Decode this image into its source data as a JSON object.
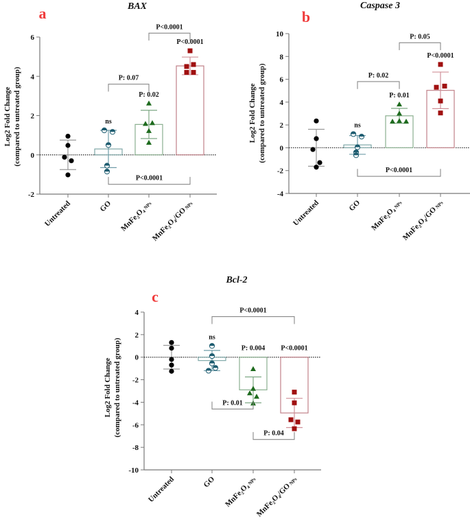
{
  "chart_data": [
    {
      "type": "bar",
      "panel": "a",
      "title": "BAX",
      "ylabel": "Log2 Fold Change",
      "ylabel2": "(compared to untreated group)",
      "ylim": [
        -2,
        6
      ],
      "yticks": [
        -2,
        0,
        2,
        4,
        6
      ],
      "categories": [
        {
          "main": "Untreated",
          "sub": ""
        },
        {
          "main": "GO",
          "sub": ""
        },
        {
          "main": "MnFe₂O₄",
          "sub": "NPs"
        },
        {
          "main": "MnFe₂O₄/GO",
          "sub": "NPs"
        }
      ],
      "means": [
        0.0,
        0.3,
        1.55,
        4.53
      ],
      "sd": [
        0.75,
        0.95,
        0.72,
        0.45
      ],
      "points": [
        [
          0.95,
          0.48,
          -0.12,
          -0.3,
          -1.02
        ],
        [
          1.25,
          1.17,
          0.5,
          -0.55,
          -0.85
        ],
        [
          2.62,
          1.58,
          1.62,
          1.22,
          0.62
        ],
        [
          5.3,
          4.5,
          4.6,
          4.2,
          4.2
        ]
      ],
      "group_annotations": [
        "",
        "ns",
        "P: 0.02",
        "P<0.0001"
      ],
      "brackets": [
        {
          "from": 1,
          "to": 2,
          "label": "P: 0.07",
          "y": 3.6,
          "dir": "up"
        },
        {
          "from": 2,
          "to": 3,
          "label": "P<0.0001",
          "y": 6.2,
          "dir": "up"
        },
        {
          "from": 1,
          "to": 3,
          "label": "P<0.0001",
          "y": -1.5,
          "dir": "down"
        }
      ]
    },
    {
      "type": "bar",
      "panel": "b",
      "title": "Caspase 3",
      "ylabel": "Log2 Fold Change",
      "ylabel2": "(compared to untreated group)",
      "ylim": [
        -4,
        10
      ],
      "yticks": [
        -4,
        -2,
        0,
        2,
        4,
        6,
        8,
        10
      ],
      "categories": [
        {
          "main": "Untreated",
          "sub": ""
        },
        {
          "main": "GO",
          "sub": ""
        },
        {
          "main": "MnFe₂O₄",
          "sub": "NPs"
        },
        {
          "main": "MnFe₂O₄/GO",
          "sub": "NPs"
        }
      ],
      "means": [
        0.0,
        0.25,
        2.8,
        5.03
      ],
      "sd": [
        1.62,
        0.82,
        0.65,
        1.6
      ],
      "points": [
        [
          2.35,
          0.8,
          -0.15,
          -1.3,
          -1.7
        ],
        [
          1.2,
          0.98,
          0.05,
          -0.4,
          -0.65
        ],
        [
          3.8,
          3.0,
          2.3,
          2.35,
          2.3
        ],
        [
          7.3,
          5.3,
          5.4,
          4.1,
          3.05
        ]
      ],
      "group_annotations": [
        "",
        "ns",
        "P: 0.01",
        "P<0.0001"
      ],
      "brackets": [
        {
          "from": 1,
          "to": 2,
          "label": "P: 0.02",
          "y": 5.8,
          "dir": "up"
        },
        {
          "from": 2,
          "to": 3,
          "label": "P: 0.05",
          "y": 9.2,
          "dir": "up"
        },
        {
          "from": 1,
          "to": 3,
          "label": "P<0.0001",
          "y": -2.5,
          "dir": "down"
        }
      ]
    },
    {
      "type": "bar",
      "panel": "c",
      "title": "Bcl-2",
      "ylabel": "Log2 Fold Change",
      "ylabel2": "(compared to untreated group)",
      "ylim": [
        -10,
        4
      ],
      "yticks": [
        -10,
        -8,
        -6,
        -4,
        -2,
        0,
        2,
        4
      ],
      "categories": [
        {
          "main": "Untreated",
          "sub": ""
        },
        {
          "main": "GO",
          "sub": ""
        },
        {
          "main": "MnFe₂O₄",
          "sub": "NPs"
        },
        {
          "main": "MnFe₂O₄/GO",
          "sub": "NPs"
        }
      ],
      "means": [
        0.0,
        -0.3,
        -2.9,
        -4.95
      ],
      "sd": [
        1.05,
        0.9,
        1.15,
        1.3
      ],
      "points": [
        [
          1.3,
          0.8,
          -0.2,
          -0.7,
          -1.25
        ],
        [
          1.0,
          0.1,
          -0.55,
          -0.95,
          -1.2
        ],
        [
          -1.05,
          -2.8,
          -3.2,
          -3.5,
          -4.1
        ],
        [
          -3.1,
          -4.05,
          -5.55,
          -5.75,
          -6.35
        ]
      ],
      "group_annotations": [
        "",
        "ns",
        "P: 0.004",
        "P<0.0001"
      ],
      "brackets": [
        {
          "from": 1,
          "to": 3,
          "label": "P<0.0001",
          "y": 3.6,
          "dir": "up"
        },
        {
          "from": 1,
          "to": 2,
          "label": "P: 0.01",
          "y": -4.6,
          "dir": "down"
        },
        {
          "from": 2,
          "to": 3,
          "label": "P: 0.04",
          "y": -7.3,
          "dir": "down"
        }
      ]
    }
  ],
  "series_style": {
    "colors": [
      "#000000",
      "#1d5c70",
      "#1e6b1e",
      "#a01010"
    ],
    "bar_outline": [
      "#888888",
      "#7fa8a8",
      "#8aaf8f",
      "#c08088"
    ],
    "errbar": [
      "#999999",
      "#6f9ca8",
      "#7ea884",
      "#d09098"
    ],
    "markers": [
      "circle",
      "half-circle",
      "triangle",
      "square"
    ]
  },
  "panel_letter_color": "#f03c3c"
}
